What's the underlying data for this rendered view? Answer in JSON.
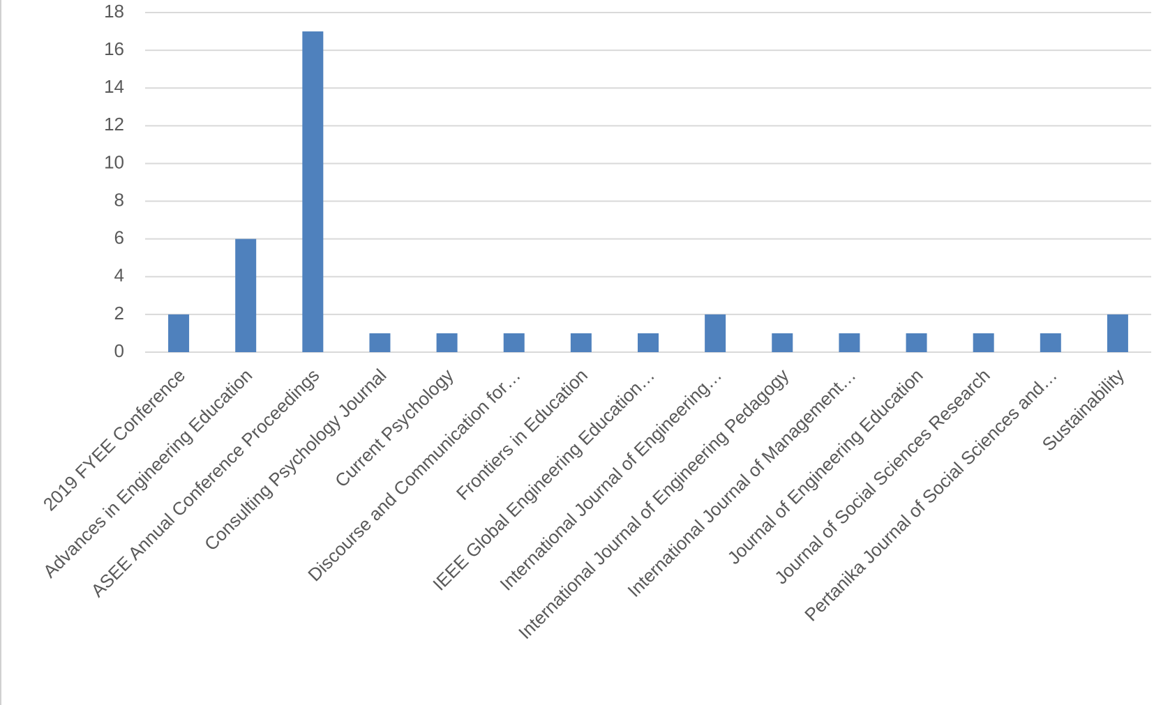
{
  "chart_data": {
    "type": "bar",
    "categories": [
      "2019 FYEE Conference",
      "Advances in Engineering Education",
      "ASEE Annual Conference Proceedings",
      "Consulting Psychology Journal",
      "Current Psychology",
      "Discourse and Communication for…",
      "Frontiers in Education",
      "IEEE Global Engineering Education…",
      "International Journal of Engineering…",
      "International Journal of Engineering Pedagogy",
      "International Journal of Management…",
      "Journal of Engineering Education",
      "Journal of Social Sciences Research",
      "Pertanika Journal of Social Sciences and…",
      "Sustainability"
    ],
    "values": [
      2,
      6,
      17,
      1,
      1,
      1,
      1,
      1,
      2,
      1,
      1,
      1,
      1,
      1,
      2
    ],
    "color": "#4f81bd",
    "ylim": [
      0,
      18
    ],
    "yticks": [
      0,
      2,
      4,
      6,
      8,
      10,
      12,
      14,
      16,
      18
    ],
    "grid": true
  }
}
